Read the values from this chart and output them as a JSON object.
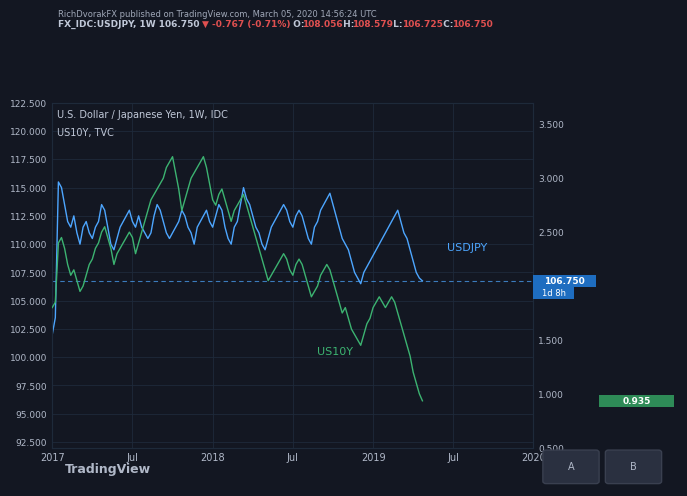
{
  "bg_color": "#131722",
  "plot_bg_color": "#131722",
  "grid_color": "#1e2a3a",
  "title_line1": "U.S. Dollar / Japanese Yen, 1W, IDC",
  "title_line2": "US10Y, TVC",
  "header_line1": "RichDvorakFX published on TradingView.com, March 05, 2020 14:56:24 UTC",
  "header_line2": "FX_IDC:USDJPY, 1W 106.750 ▼ -0.767 (-0.71%) O:108.056 H:108.579 L:106.725 C:106.750",
  "usdjpy_color": "#4da6ff",
  "us10y_color": "#3cb371",
  "hline_color": "#4da6ff",
  "hline_value": 106.75,
  "hline_dash": [
    4,
    3
  ],
  "label_usdjpy": "USDJPY",
  "label_us10y": "US10Y",
  "price_box_value": "106.750",
  "price_box_bg": "#1e6dc0",
  "yield_box_value": "0.935",
  "yield_box_bg": "#2e8b57",
  "time_box_value": "1d 8h",
  "time_box_bg": "#1e6dc0",
  "left_ylim": [
    92.0,
    122.5
  ],
  "right_ylim": [
    0.5,
    3.7
  ],
  "left_yticks": [
    92.5,
    95.0,
    97.5,
    100.0,
    102.5,
    105.0,
    107.5,
    110.0,
    112.5,
    115.0,
    117.5,
    120.0,
    122.5
  ],
  "right_yticks": [
    0.5,
    1.0,
    1.5,
    2.0,
    2.5,
    3.0,
    3.5
  ],
  "xtick_labels": [
    "2017",
    "Jul",
    "2018",
    "Jul",
    "2019",
    "Jul",
    "2020"
  ],
  "footer_text": "TradingView",
  "usdjpy_data": [
    102.0,
    103.5,
    115.5,
    115.0,
    113.5,
    112.0,
    111.5,
    112.5,
    111.0,
    110.0,
    111.5,
    112.0,
    111.0,
    110.5,
    111.5,
    112.0,
    113.5,
    113.0,
    111.5,
    110.0,
    109.5,
    110.5,
    111.5,
    112.0,
    112.5,
    113.0,
    112.0,
    111.5,
    112.5,
    111.5,
    111.0,
    110.5,
    111.0,
    112.5,
    113.5,
    113.0,
    112.0,
    111.0,
    110.5,
    111.0,
    111.5,
    112.0,
    113.0,
    112.5,
    111.5,
    111.0,
    110.0,
    111.5,
    112.0,
    112.5,
    113.0,
    112.0,
    111.5,
    112.5,
    113.5,
    113.0,
    111.5,
    110.5,
    110.0,
    111.5,
    112.0,
    113.5,
    115.0,
    114.0,
    113.5,
    112.5,
    111.5,
    111.0,
    110.0,
    109.5,
    110.5,
    111.5,
    112.0,
    112.5,
    113.0,
    113.5,
    113.0,
    112.0,
    111.5,
    112.5,
    113.0,
    112.5,
    111.5,
    110.5,
    110.0,
    111.5,
    112.0,
    113.0,
    113.5,
    114.0,
    114.5,
    113.5,
    112.5,
    111.5,
    110.5,
    110.0,
    109.5,
    108.5,
    107.5,
    107.0,
    106.5,
    107.5,
    108.0,
    108.5,
    109.0,
    109.5,
    110.0,
    110.5,
    111.0,
    111.5,
    112.0,
    112.5,
    113.0,
    112.0,
    111.0,
    110.5,
    109.5,
    108.5,
    107.5,
    107.0,
    106.75
  ],
  "us10y_data": [
    1.8,
    1.85,
    2.4,
    2.45,
    2.35,
    2.2,
    2.1,
    2.15,
    2.05,
    1.95,
    2.0,
    2.1,
    2.2,
    2.25,
    2.35,
    2.4,
    2.5,
    2.55,
    2.45,
    2.35,
    2.2,
    2.3,
    2.35,
    2.4,
    2.45,
    2.5,
    2.45,
    2.3,
    2.4,
    2.5,
    2.6,
    2.7,
    2.8,
    2.85,
    2.9,
    2.95,
    3.0,
    3.1,
    3.15,
    3.2,
    3.05,
    2.9,
    2.7,
    2.8,
    2.9,
    3.0,
    3.05,
    3.1,
    3.15,
    3.2,
    3.1,
    2.95,
    2.8,
    2.75,
    2.85,
    2.9,
    2.8,
    2.7,
    2.6,
    2.7,
    2.75,
    2.8,
    2.85,
    2.75,
    2.65,
    2.55,
    2.45,
    2.35,
    2.25,
    2.15,
    2.05,
    2.1,
    2.15,
    2.2,
    2.25,
    2.3,
    2.25,
    2.15,
    2.1,
    2.2,
    2.25,
    2.2,
    2.1,
    2.0,
    1.9,
    1.95,
    2.0,
    2.1,
    2.15,
    2.2,
    2.15,
    2.05,
    1.95,
    1.85,
    1.75,
    1.8,
    1.7,
    1.6,
    1.55,
    1.5,
    1.45,
    1.55,
    1.65,
    1.7,
    1.8,
    1.85,
    1.9,
    1.85,
    1.8,
    1.85,
    1.9,
    1.85,
    1.75,
    1.65,
    1.55,
    1.45,
    1.35,
    1.2,
    1.1,
    1.0,
    0.935
  ]
}
